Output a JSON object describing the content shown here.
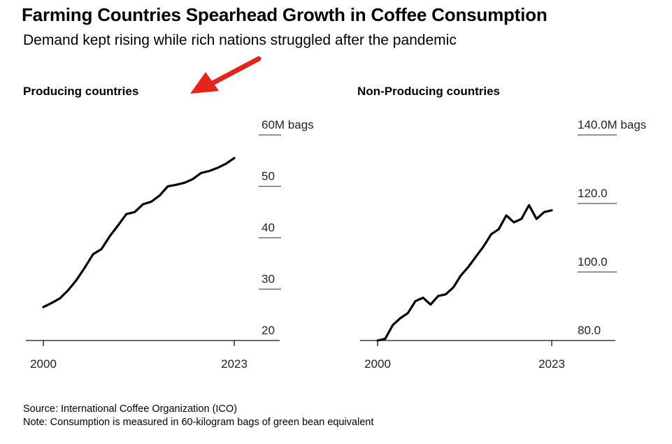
{
  "header": {
    "title": "Farming Countries Spearhead Growth in Coffee Consumption",
    "subtitle": "Demand kept rising while rich nations struggled after the pandemic"
  },
  "footer": {
    "source": "Source: International Coffee Organization (ICO)",
    "note": "Note: Consumption is measured in 60-kilogram bags of green bean equivalent"
  },
  "colors": {
    "line": "#000000",
    "arrow": "#e8221c",
    "grid": "#555555"
  },
  "chart_data": [
    {
      "type": "line",
      "title": "Producing countries",
      "x": [
        2000,
        2001,
        2002,
        2003,
        2004,
        2005,
        2006,
        2007,
        2008,
        2009,
        2010,
        2011,
        2012,
        2013,
        2014,
        2015,
        2016,
        2017,
        2018,
        2019,
        2020,
        2021,
        2022,
        2023
      ],
      "series": [
        {
          "name": "Producing countries",
          "values": [
            26.5,
            27.3,
            28.2,
            29.8,
            31.8,
            34.2,
            36.8,
            37.8,
            40.3,
            42.4,
            44.6,
            45.0,
            46.5,
            47.0,
            48.2,
            50.0,
            50.3,
            50.7,
            51.4,
            52.6,
            53.0,
            53.6,
            54.4,
            55.5
          ]
        }
      ],
      "xticks": [
        "2000",
        "2023"
      ],
      "yticks": [
        {
          "value": 60,
          "label": "60M bags"
        },
        {
          "value": 50,
          "label": "50"
        },
        {
          "value": 40,
          "label": "40"
        },
        {
          "value": 30,
          "label": "30"
        },
        {
          "value": 20,
          "label": "20"
        }
      ],
      "ylim": [
        20,
        60
      ],
      "xlabel": "",
      "ylabel": "M bags"
    },
    {
      "type": "line",
      "title": "Non-Producing countries",
      "x": [
        2000,
        2001,
        2002,
        2003,
        2004,
        2005,
        2006,
        2007,
        2008,
        2009,
        2010,
        2011,
        2012,
        2013,
        2014,
        2015,
        2016,
        2017,
        2018,
        2019,
        2020,
        2021,
        2022,
        2023
      ],
      "series": [
        {
          "name": "Non-Producing countries",
          "values": [
            80.0,
            80.5,
            84.5,
            86.5,
            88.0,
            91.5,
            92.5,
            90.5,
            93.0,
            93.5,
            95.5,
            99.0,
            101.5,
            104.5,
            107.5,
            111.0,
            112.5,
            116.5,
            114.5,
            115.5,
            119.5,
            115.5,
            117.5,
            118.0
          ]
        }
      ],
      "xticks": [
        "2000",
        "2023"
      ],
      "yticks": [
        {
          "value": 140,
          "label": "140.0M bags"
        },
        {
          "value": 120,
          "label": "120.0"
        },
        {
          "value": 100,
          "label": "100.0"
        },
        {
          "value": 80,
          "label": "80.0"
        }
      ],
      "ylim": [
        80,
        140
      ],
      "xlabel": "",
      "ylabel": "M bags"
    }
  ]
}
